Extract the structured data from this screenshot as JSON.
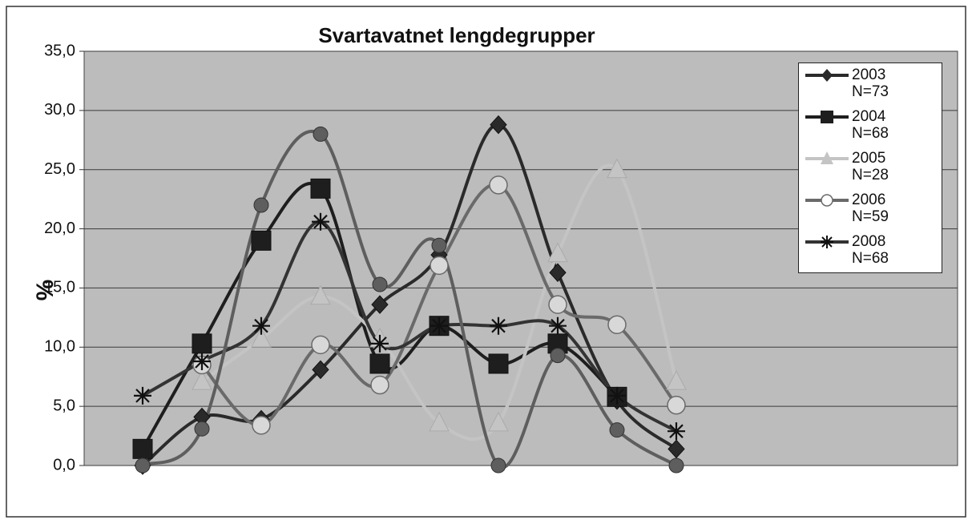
{
  "chart_data": {
    "type": "line",
    "title": "Svartavatnet lengdegrupper",
    "y_label": "%",
    "categories": [
      null,
      null,
      null,
      null,
      null,
      null,
      null,
      null,
      null,
      null
    ],
    "ylim": [
      0,
      35
    ],
    "yticks": [
      {
        "value": 0,
        "label": "0,0"
      },
      {
        "value": 5,
        "label": "5,0"
      },
      {
        "value": 10,
        "label": "10,0"
      },
      {
        "value": 15,
        "label": "15,0"
      },
      {
        "value": 20,
        "label": "20,0"
      },
      {
        "value": 25,
        "label": "25,0"
      },
      {
        "value": 30,
        "label": "30,0"
      },
      {
        "value": 35,
        "label": "35,0"
      }
    ],
    "grid": true,
    "legend": "top-right",
    "smooth": true,
    "series": [
      {
        "name": "2003 N=73",
        "color": "#2a2a2a",
        "marker": "diamond",
        "values": [
          0,
          4.1,
          3.9,
          8.1,
          13.6,
          17.8,
          28.8,
          16.3,
          5.5,
          1.4
        ]
      },
      {
        "name": "2004 N=68",
        "color": "#1e1e1e",
        "marker": "square",
        "values": [
          1.4,
          10.3,
          19.0,
          23.4,
          8.6,
          11.8,
          8.6,
          10.3,
          5.8,
          null
        ]
      },
      {
        "name": "2005 N=28",
        "color": "#c4c4c4",
        "marker": "triangle",
        "values": [
          null,
          7.1,
          10.7,
          14.3,
          10.7,
          3.6,
          3.6,
          17.9,
          25.0,
          7.1
        ]
      },
      {
        "name": "2006 N=59",
        "color": "#6a6a6a",
        "marker": "circle-open",
        "values": [
          null,
          8.5,
          3.4,
          10.2,
          6.8,
          16.9,
          23.7,
          13.6,
          11.9,
          5.1
        ]
      },
      {
        "name": "2008 N=68",
        "color": "#333333",
        "marker": "star",
        "values": [
          5.9,
          8.8,
          11.8,
          20.6,
          10.3,
          11.8,
          11.8,
          11.8,
          5.9,
          2.9
        ]
      },
      {
        "name": null,
        "color": "#5e5e5e",
        "marker": "circle",
        "values": [
          0,
          3.1,
          22.0,
          28.0,
          15.3,
          18.6,
          0,
          9.3,
          3.0,
          0
        ]
      }
    ]
  }
}
